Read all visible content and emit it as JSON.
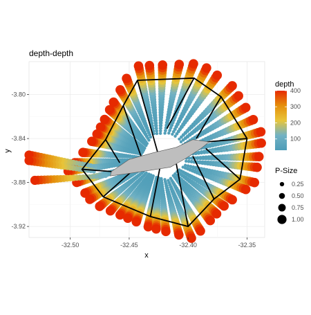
{
  "chart_data": {
    "type": "scatter",
    "title": "depth-depth",
    "xlabel": "x",
    "ylabel": "y",
    "xlim": [
      -32.535,
      -32.335
    ],
    "ylim": [
      -3.93,
      -3.77
    ],
    "x_ticks": [
      -32.5,
      -32.45,
      -32.4,
      -32.35
    ],
    "x_tick_labels": [
      "-32.50",
      "-32.45",
      "-32.40",
      "-32.35"
    ],
    "y_ticks": [
      -3.8,
      -3.84,
      -3.88,
      -3.92
    ],
    "y_tick_labels": [
      "-3.80",
      "-3.84",
      "-3.88",
      "-3.92"
    ],
    "grid": true,
    "color_legend": {
      "title": "depth",
      "min": 30,
      "max": 400,
      "ticks": [
        100,
        200,
        300,
        400
      ],
      "tick_labels": [
        "100",
        "200",
        "300",
        "400"
      ],
      "colors": [
        "#4e9db8",
        "#72b2c4",
        "#e8c53a",
        "#e58f0b",
        "#e62a00"
      ]
    },
    "size_legend": {
      "title": "P-Size",
      "values": [
        0.25,
        0.5,
        0.75,
        1.0
      ],
      "labels": [
        "0.25",
        "0.50",
        "0.75",
        "1.00"
      ]
    },
    "island_polygon": [
      [
        -32.465,
        -3.87
      ],
      [
        -32.45,
        -3.859
      ],
      [
        -32.43,
        -3.853
      ],
      [
        -32.41,
        -3.848
      ],
      [
        -32.396,
        -3.841
      ],
      [
        -32.382,
        -3.843
      ],
      [
        -32.389,
        -3.849
      ],
      [
        -32.402,
        -3.858
      ],
      [
        -32.415,
        -3.866
      ],
      [
        -32.433,
        -3.869
      ],
      [
        -32.452,
        -3.872
      ],
      [
        -32.466,
        -3.874
      ]
    ],
    "frame_vertices": [
      [
        -32.443,
        -3.787
      ],
      [
        -32.395,
        -3.785
      ],
      [
        -32.372,
        -3.802
      ],
      [
        -32.35,
        -3.84
      ],
      [
        -32.356,
        -3.877
      ],
      [
        -32.378,
        -3.895
      ],
      [
        -32.4,
        -3.92
      ],
      [
        -32.432,
        -3.911
      ],
      [
        -32.472,
        -3.893
      ],
      [
        -32.49,
        -3.868
      ],
      [
        -32.47,
        -3.841
      ],
      [
        -32.455,
        -3.81
      ]
    ],
    "frame_spokes": [
      [
        [
          -32.443,
          -3.787
        ],
        [
          -32.426,
          -3.852
        ]
      ],
      [
        [
          -32.395,
          -3.785
        ],
        [
          -32.418,
          -3.831
        ]
      ],
      [
        [
          -32.372,
          -3.802
        ],
        [
          -32.393,
          -3.84
        ]
      ],
      [
        [
          -32.35,
          -3.84
        ],
        [
          -32.384,
          -3.843
        ]
      ],
      [
        [
          -32.356,
          -3.877
        ],
        [
          -32.385,
          -3.849
        ]
      ],
      [
        [
          -32.378,
          -3.895
        ],
        [
          -32.396,
          -3.856
        ]
      ],
      [
        [
          -32.4,
          -3.92
        ],
        [
          -32.41,
          -3.863
        ]
      ],
      [
        [
          -32.432,
          -3.911
        ],
        [
          -32.424,
          -3.867
        ]
      ],
      [
        [
          -32.472,
          -3.893
        ],
        [
          -32.448,
          -3.87
        ]
      ],
      [
        [
          -32.49,
          -3.868
        ],
        [
          -32.465,
          -3.87
        ]
      ],
      [
        [
          -32.47,
          -3.841
        ],
        [
          -32.458,
          -3.862
        ]
      ],
      [
        [
          -32.455,
          -3.81
        ],
        [
          -32.44,
          -3.856
        ]
      ]
    ],
    "transects": [
      {
        "from": [
          -32.48,
          -3.865
        ],
        "to": [
          -32.535,
          -3.855
        ],
        "depth_end": 400
      },
      {
        "from": [
          -32.48,
          -3.87
        ],
        "to": [
          -32.535,
          -3.86
        ],
        "depth_end": 400
      },
      {
        "from": [
          -32.47,
          -3.874
        ],
        "to": [
          -32.53,
          -3.878
        ],
        "depth_end": 400
      }
    ]
  }
}
